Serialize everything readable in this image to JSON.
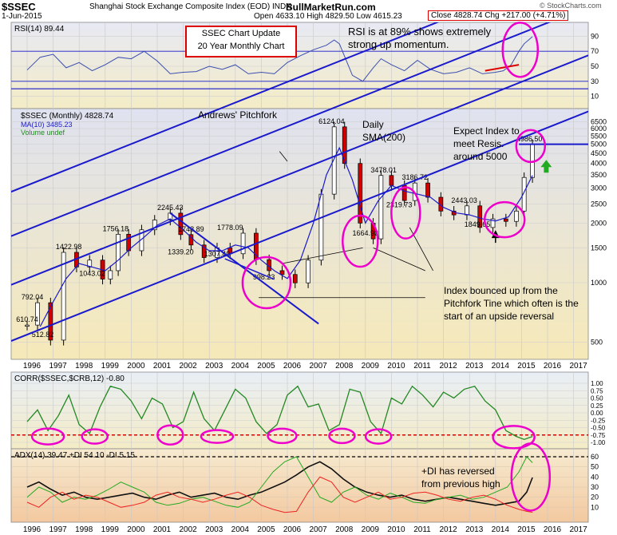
{
  "header": {
    "title": "$SSEC",
    "subtitle": "Shanghai Stock Exchange Composite Index (EOD)  INDX",
    "date": "1-Jun-2015",
    "site": "BullMarketRun.com",
    "ohl": "Open 4633.10  High 4829.50  Low 4615.23",
    "close": "Close 4828.74  Chg +217.00 (+4.71%)",
    "logo": "© StockCharts.com"
  },
  "update_box": {
    "line1": "SSEC Chart Update",
    "line2": "20 Year Monthly Chart"
  },
  "annotations": {
    "rsi_note_1": "RSI is at 89% shows extremely",
    "rsi_note_2": "strong up momentum.",
    "pitchfork": "Andrews' Pitchfork",
    "sma_1": "Daily",
    "sma_2": "SMA(200)",
    "expect_1": "Expect Index to",
    "expect_2": "meet Resis.",
    "expect_3": "around 5000",
    "bounce_1": "Index bounced up from the",
    "bounce_2": "Pitchfork Tine which often is the",
    "bounce_3": "start of an upside reversal",
    "di_1": "+DI has reversed",
    "di_2": "from previous high"
  },
  "colors": {
    "pitchfork": "#1a1acc",
    "highlight": "#ee00cc",
    "close_box": "#dd0000",
    "price_bg_top": "#dfe2f0",
    "price_bg_bottom": "#f6e9b8",
    "corr_line": "#228822",
    "adx_line": "#111111",
    "plus_di": "#22aa22",
    "minus_di": "#ee2222",
    "rsi_line": "#3b4fb0",
    "up_arrow": "#22aa22"
  },
  "chart_data": [
    {
      "type": "line",
      "panel": "rsi",
      "legend": "RSI(14) 89.44",
      "ylim": [
        0,
        100
      ],
      "yticks": [
        10,
        30,
        50,
        70,
        90
      ],
      "levels": [
        30,
        70
      ],
      "x": [
        1996.0,
        1996.5,
        1997.0,
        1997.5,
        1998.0,
        1998.5,
        1999.0,
        1999.5,
        2000.0,
        2000.5,
        2001.0,
        2001.5,
        2002.0,
        2002.5,
        2003.0,
        2003.5,
        2004.0,
        2004.5,
        2005.0,
        2005.5,
        2006.0,
        2006.5,
        2007.0,
        2007.5,
        2007.8,
        2008.0,
        2008.5,
        2008.9,
        2009.3,
        2009.6,
        2010.0,
        2010.5,
        2011.0,
        2011.5,
        2012.0,
        2012.5,
        2013.0,
        2013.5,
        2014.0,
        2014.3,
        2014.6,
        2014.9,
        2015.1,
        2015.3,
        2015.42
      ],
      "values": [
        45,
        62,
        66,
        48,
        55,
        44,
        52,
        62,
        60,
        70,
        57,
        40,
        42,
        43,
        50,
        46,
        52,
        40,
        42,
        40,
        55,
        64,
        72,
        78,
        85,
        80,
        38,
        30,
        48,
        60,
        52,
        44,
        58,
        46,
        40,
        42,
        48,
        40,
        42,
        44,
        52,
        70,
        80,
        86,
        89.44
      ]
    },
    {
      "type": "candlestick",
      "panel": "price",
      "legend": [
        "$SSEC (Monthly) 4828.74",
        "MA(10) 3485.23",
        "Volume undef"
      ],
      "scale": "log",
      "yticks": [
        500,
        1000,
        1500,
        2000,
        2500,
        3000,
        3500,
        4000,
        4500,
        5000,
        5500,
        6000,
        6500
      ],
      "xticks": [
        "1996",
        "1997",
        "1998",
        "1999",
        "2000",
        "2001",
        "2002",
        "2003",
        "2004",
        "2005",
        "2006",
        "2007",
        "2008",
        "2009",
        "2010",
        "2011",
        "2012",
        "2013",
        "2014",
        "2015",
        "2016",
        "2017"
      ],
      "x": [
        1996.0,
        1996.4,
        1996.9,
        1997.4,
        1997.9,
        1998.4,
        1998.9,
        1999.2,
        1999.5,
        1999.9,
        2000.4,
        2000.9,
        2001.5,
        2001.9,
        2002.3,
        2002.8,
        2003.3,
        2003.8,
        2004.3,
        2004.8,
        2005.3,
        2005.8,
        2006.3,
        2006.8,
        2007.3,
        2007.8,
        2008.2,
        2008.8,
        2009.3,
        2009.6,
        2010.0,
        2010.5,
        2010.9,
        2011.4,
        2011.9,
        2012.4,
        2012.9,
        2013.4,
        2013.9,
        2014.4,
        2014.8,
        2015.1,
        2015.42
      ],
      "values": [
        610.74,
        792.04,
        512.82,
        1422.98,
        1200,
        1300,
        1043.02,
        1150,
        1756.18,
        1450,
        1850,
        2073,
        2245.43,
        1748.89,
        1550,
        1339.2,
        1500,
        1400,
        1778.09,
        1307.4,
        1150,
        1100,
        998.23,
        1300,
        2800,
        6124.04,
        4000,
        2000,
        1664.92,
        3478.01,
        3100,
        2600,
        3186.72,
        2700,
        2300,
        2200,
        2443.03,
        1900,
        2100,
        2040,
        2300,
        3400,
        4986.5
      ],
      "point_labels": [
        {
          "x": 1996.2,
          "y": 792.04,
          "text": "792.04"
        },
        {
          "x": 1996.0,
          "y": 610.74,
          "text": "610.74"
        },
        {
          "x": 1996.6,
          "y": 512.82,
          "text": "512.82"
        },
        {
          "x": 1997.6,
          "y": 1422.98,
          "text": "1422.98"
        },
        {
          "x": 1998.5,
          "y": 1043.02,
          "text": "1043.02"
        },
        {
          "x": 1999.4,
          "y": 1756.18,
          "text": "1756.18"
        },
        {
          "x": 2001.5,
          "y": 2245.43,
          "text": "2245.43"
        },
        {
          "x": 2002.3,
          "y": 1748.89,
          "text": "1748.89"
        },
        {
          "x": 2001.9,
          "y": 1339.2,
          "text": "1339.20"
        },
        {
          "x": 2003.8,
          "y": 1778.09,
          "text": "1778.09"
        },
        {
          "x": 2003.3,
          "y": 1307.4,
          "text": "1307.40"
        },
        {
          "x": 2005.1,
          "y": 998.23,
          "text": "998.23"
        },
        {
          "x": 2007.7,
          "y": 6124.04,
          "text": "6124.04"
        },
        {
          "x": 2009.0,
          "y": 1664.92,
          "text": "1664.92"
        },
        {
          "x": 2009.7,
          "y": 3478.01,
          "text": "3478.01"
        },
        {
          "x": 2010.9,
          "y": 3186.72,
          "text": "3186.72"
        },
        {
          "x": 2010.3,
          "y": 2319.73,
          "text": "2319.73"
        },
        {
          "x": 2012.8,
          "y": 2443.03,
          "text": "2443.03"
        },
        {
          "x": 2013.3,
          "y": 1849.65,
          "text": "1849.65"
        },
        {
          "x": 2015.3,
          "y": 4986.5,
          "text": "4986.50"
        }
      ],
      "ma10": {
        "x": [
          1996.5,
          1997.0,
          1997.5,
          1998.0,
          1998.5,
          1999.0,
          1999.5,
          2000.0,
          2000.5,
          2001.0,
          2001.5,
          2002.0,
          2002.5,
          2003.0,
          2003.5,
          2004.0,
          2004.5,
          2005.0,
          2005.5,
          2006.0,
          2006.5,
          2007.0,
          2007.5,
          2008.0,
          2008.5,
          2009.0,
          2009.5,
          2010.0,
          2010.5,
          2011.0,
          2011.5,
          2012.0,
          2012.5,
          2013.0,
          2013.5,
          2014.0,
          2014.5,
          2015.0,
          2015.42
        ],
        "values": [
          600,
          800,
          1050,
          1250,
          1200,
          1150,
          1300,
          1500,
          1700,
          1950,
          2100,
          1850,
          1600,
          1450,
          1450,
          1550,
          1500,
          1300,
          1150,
          1050,
          1300,
          2000,
          3500,
          4800,
          3300,
          2000,
          2600,
          3100,
          2900,
          2800,
          2700,
          2400,
          2250,
          2200,
          2100,
          2050,
          2150,
          2700,
          3485.23
        ]
      }
    },
    {
      "type": "line",
      "panel": "corr",
      "legend": "CORR($SSEC,$CRB,12) -0.80",
      "ylim": [
        -1.0,
        1.0
      ],
      "yticks": [
        -1.0,
        -0.75,
        -0.5,
        -0.25,
        0.0,
        0.25,
        0.5,
        0.75,
        1.0
      ],
      "x": [
        1996.0,
        1996.4,
        1996.8,
        1997.2,
        1997.6,
        1998.0,
        1998.4,
        1998.8,
        1999.2,
        1999.6,
        2000.0,
        2000.4,
        2000.8,
        2001.2,
        2001.6,
        2002.0,
        2002.4,
        2002.8,
        2003.2,
        2003.6,
        2004.0,
        2004.4,
        2004.8,
        2005.2,
        2005.6,
        2006.0,
        2006.4,
        2006.8,
        2007.2,
        2007.6,
        2008.0,
        2008.4,
        2008.8,
        2009.2,
        2009.6,
        2010.0,
        2010.4,
        2010.8,
        2011.2,
        2011.6,
        2012.0,
        2012.4,
        2012.8,
        2013.2,
        2013.6,
        2014.0,
        2014.4,
        2014.8,
        2015.1,
        2015.42
      ],
      "values": [
        -0.3,
        0.1,
        -0.6,
        -0.1,
        0.6,
        -0.4,
        -0.7,
        0.2,
        0.9,
        0.8,
        0.4,
        -0.2,
        0.5,
        0.3,
        -0.5,
        -0.3,
        0.7,
        -0.2,
        -0.6,
        0.1,
        0.8,
        0.5,
        -0.3,
        -0.7,
        -0.4,
        0.6,
        0.9,
        0.2,
        0.3,
        -0.6,
        -0.4,
        0.8,
        0.7,
        -0.3,
        -0.7,
        0.5,
        0.3,
        0.9,
        0.6,
        0.2,
        0.7,
        0.5,
        0.8,
        0.9,
        0.4,
        0.1,
        -0.6,
        -0.8,
        -0.9,
        -0.8
      ]
    },
    {
      "type": "line",
      "panel": "adx",
      "legend": "ADX(14) 39.47  +DI 54.10  -DI 5.15",
      "ylim": [
        0,
        60
      ],
      "yticks": [
        10,
        20,
        30,
        40,
        50,
        60
      ],
      "series": [
        {
          "name": "ADX(14)",
          "values": [
            30,
            35,
            28,
            22,
            25,
            20,
            18,
            20,
            22,
            24,
            20,
            18,
            22,
            25,
            20,
            22,
            24,
            20,
            18,
            22,
            25,
            30,
            35,
            42,
            50,
            55,
            48,
            38,
            30,
            25,
            22,
            20,
            22,
            18,
            16,
            18,
            20,
            18,
            16,
            14,
            12,
            14,
            16,
            25,
            39.47
          ]
        },
        {
          "name": "+DI",
          "values": [
            20,
            30,
            25,
            15,
            20,
            18,
            22,
            28,
            35,
            30,
            25,
            15,
            12,
            14,
            18,
            20,
            16,
            12,
            10,
            15,
            30,
            45,
            55,
            60,
            40,
            20,
            15,
            25,
            30,
            22,
            18,
            24,
            20,
            15,
            14,
            18,
            20,
            22,
            18,
            20,
            25,
            30,
            45,
            60,
            54.1
          ]
        },
        {
          "name": "-DI",
          "values": [
            15,
            10,
            20,
            25,
            18,
            22,
            20,
            15,
            10,
            12,
            15,
            22,
            25,
            20,
            18,
            15,
            18,
            22,
            25,
            20,
            12,
            8,
            5,
            6,
            25,
            40,
            35,
            20,
            15,
            20,
            25,
            18,
            20,
            24,
            25,
            22,
            18,
            16,
            20,
            22,
            18,
            12,
            8,
            6,
            5.15
          ]
        }
      ],
      "x": [
        1996.0,
        1996.45,
        1996.9,
        1997.35,
        1997.8,
        1998.25,
        1998.7,
        1999.15,
        1999.6,
        2000.05,
        2000.5,
        2000.95,
        2001.4,
        2001.85,
        2002.3,
        2002.75,
        2003.2,
        2003.65,
        2004.1,
        2004.55,
        2005.0,
        2005.45,
        2005.9,
        2006.35,
        2006.8,
        2007.25,
        2007.7,
        2008.15,
        2008.6,
        2009.05,
        2009.5,
        2009.95,
        2010.4,
        2010.85,
        2011.3,
        2011.75,
        2012.2,
        2012.65,
        2013.1,
        2013.55,
        2014.0,
        2014.45,
        2014.9,
        2015.2,
        2015.42
      ]
    }
  ]
}
